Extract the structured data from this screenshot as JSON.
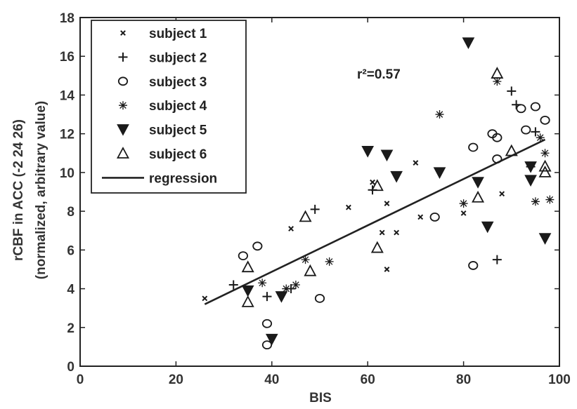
{
  "chart_data": {
    "type": "scatter",
    "xlabel": "BIS",
    "ylabel_line1": "rCBF in ACC (-2 24 26)",
    "ylabel_line2": "(normalized, arbitrary value)",
    "xlim": [
      0,
      100
    ],
    "ylim": [
      0,
      18
    ],
    "xticks": [
      "0",
      "20",
      "40",
      "60",
      "80",
      "100"
    ],
    "yticks": [
      "0",
      "2",
      "4",
      "6",
      "8",
      "10",
      "12",
      "14",
      "16",
      "18"
    ],
    "grid": false,
    "legend_position": "top-left",
    "annotation": "r²=0.57",
    "series": [
      {
        "name": "subject 1",
        "marker": "x",
        "points": [
          [
            26,
            3.5
          ],
          [
            44,
            7.1
          ],
          [
            56,
            8.2
          ],
          [
            61,
            9.5
          ],
          [
            63,
            6.9
          ],
          [
            64,
            8.4
          ],
          [
            64,
            5.0
          ],
          [
            66,
            6.9
          ],
          [
            70,
            10.5
          ],
          [
            71,
            7.7
          ],
          [
            80,
            7.9
          ],
          [
            88,
            8.9
          ]
        ]
      },
      {
        "name": "subject 2",
        "marker": "plus",
        "points": [
          [
            32,
            4.2
          ],
          [
            39,
            3.6
          ],
          [
            44,
            4.0
          ],
          [
            49,
            8.1
          ],
          [
            61,
            9.1
          ],
          [
            87,
            5.5
          ],
          [
            90,
            14.2
          ],
          [
            91,
            13.5
          ],
          [
            95,
            12.1
          ],
          [
            94,
            10.3
          ]
        ]
      },
      {
        "name": "subject 3",
        "marker": "circle",
        "points": [
          [
            34,
            5.7
          ],
          [
            37,
            6.2
          ],
          [
            39,
            2.2
          ],
          [
            39,
            1.1
          ],
          [
            50,
            3.5
          ],
          [
            74,
            7.7
          ],
          [
            82,
            5.2
          ],
          [
            82,
            11.3
          ],
          [
            86,
            12.0
          ],
          [
            87,
            11.8
          ],
          [
            87,
            10.7
          ],
          [
            92,
            13.3
          ],
          [
            93,
            12.2
          ],
          [
            95,
            13.4
          ],
          [
            97,
            12.7
          ]
        ]
      },
      {
        "name": "subject 4",
        "marker": "star",
        "points": [
          [
            38,
            4.3
          ],
          [
            43,
            4.0
          ],
          [
            45,
            4.2
          ],
          [
            47,
            5.5
          ],
          [
            52,
            5.4
          ],
          [
            75,
            13.0
          ],
          [
            80,
            8.4
          ],
          [
            87,
            14.7
          ],
          [
            95,
            8.5
          ],
          [
            96,
            11.8
          ],
          [
            97,
            11.0
          ],
          [
            98,
            8.6
          ]
        ]
      },
      {
        "name": "subject 5",
        "marker": "triangle-down",
        "points": [
          [
            35,
            3.9
          ],
          [
            40,
            1.4
          ],
          [
            42,
            3.6
          ],
          [
            60,
            11.1
          ],
          [
            64,
            10.9
          ],
          [
            66,
            9.8
          ],
          [
            75,
            10.0
          ],
          [
            81,
            16.7
          ],
          [
            83,
            9.5
          ],
          [
            85,
            7.2
          ],
          [
            94,
            10.3
          ],
          [
            94,
            9.6
          ],
          [
            97,
            6.6
          ]
        ]
      },
      {
        "name": "subject 6",
        "marker": "triangle-up",
        "points": [
          [
            35,
            5.1
          ],
          [
            35,
            3.3
          ],
          [
            47,
            7.7
          ],
          [
            48,
            4.9
          ],
          [
            62,
            9.3
          ],
          [
            62,
            6.1
          ],
          [
            83,
            8.7
          ],
          [
            87,
            15.1
          ],
          [
            90,
            11.1
          ],
          [
            97,
            10.3
          ],
          [
            97,
            10.0
          ]
        ]
      }
    ],
    "regression": {
      "name": "regression",
      "x": [
        26,
        97
      ],
      "y": [
        3.2,
        11.7
      ]
    }
  },
  "colors": {
    "marker": "#1a1a1a",
    "axis": "#222222",
    "text": "#333333",
    "background": "#ffffff"
  }
}
